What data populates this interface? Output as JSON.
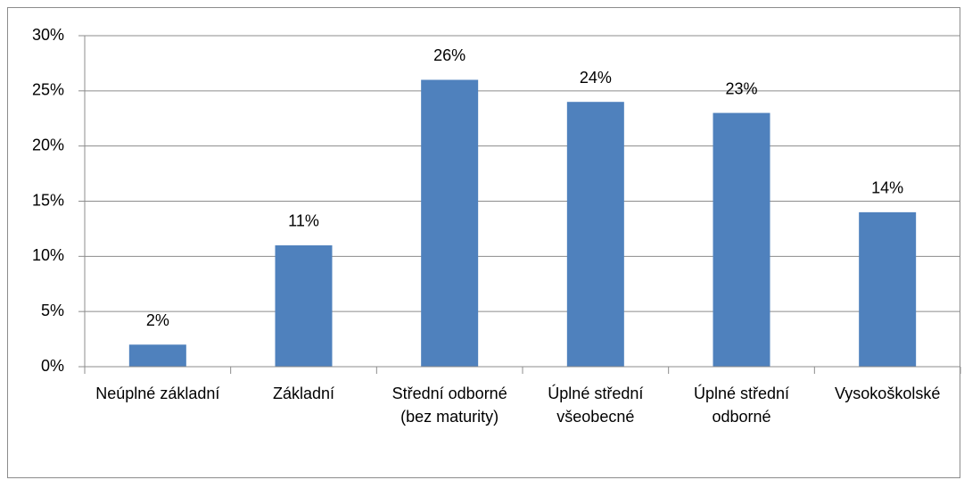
{
  "chart_data": {
    "type": "bar",
    "categories": [
      "Neúplné základní",
      "Základní",
      "Střední odborné (bez maturity)",
      "Úplné střední všeobecné",
      "Úplné střední odborné",
      "Vysokoškolské"
    ],
    "values": [
      2,
      11,
      26,
      24,
      23,
      14
    ],
    "value_labels": [
      "2%",
      "11%",
      "26%",
      "24%",
      "23%",
      "14%"
    ],
    "color": "#4f81bd",
    "ylim": [
      0,
      30
    ],
    "yticks": [
      {
        "value": 0,
        "label": "0%"
      },
      {
        "value": 5,
        "label": "5%"
      },
      {
        "value": 10,
        "label": "10%"
      },
      {
        "value": 15,
        "label": "15%"
      },
      {
        "value": 20,
        "label": "20%"
      },
      {
        "value": 25,
        "label": "25%"
      },
      {
        "value": 30,
        "label": "30%"
      }
    ],
    "grid": true
  }
}
